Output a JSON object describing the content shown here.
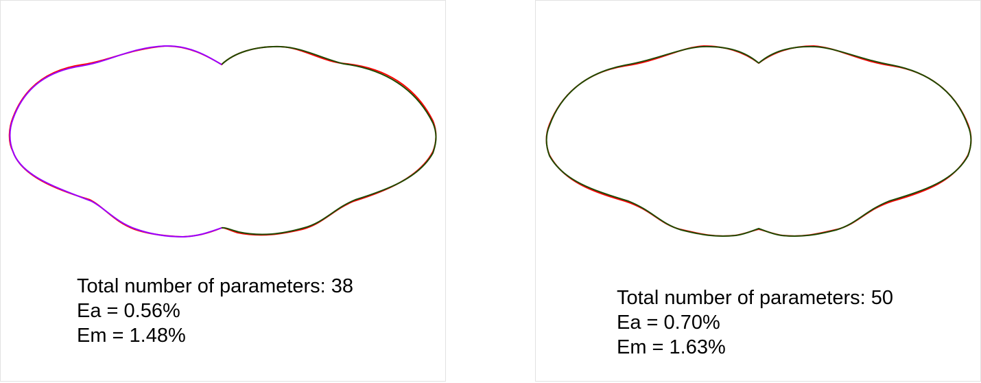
{
  "panels": [
    {
      "params_text": "Total number of parameters: 38",
      "ea_text": "Ea = 0.56%",
      "em_text": "Em = 1.48%"
    },
    {
      "params_text": "Total number of parameters: 50",
      "ea_text": "Ea = 0.70%",
      "em_text": "Em = 1.63%"
    }
  ],
  "colors": {
    "reference_curve": "#ff0000",
    "left_half_fit": "#9a00ff",
    "right_half_fit": "#1f4a00"
  }
}
